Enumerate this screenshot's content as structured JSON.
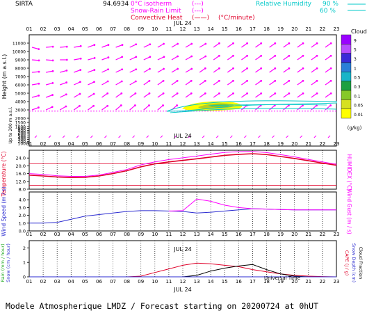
{
  "header": {
    "site": "SIRTA",
    "coord": "94.6934",
    "legend_left": [
      {
        "label": "0°C isotherm",
        "sample": "(---)",
        "color": "#ff00ff"
      },
      {
        "label": "Snow-Rain Limit",
        "sample": "(---)",
        "color": "#ff00ff"
      },
      {
        "label": "Convective Heat",
        "sample": "(——)",
        "color": "#e0002a",
        "unit": "(°C/minute)"
      }
    ],
    "legend_right": {
      "label": "Relative Humidity",
      "v1": "90 %",
      "v2": "60 %",
      "color": "#00c8c8"
    }
  },
  "hours": [
    "01",
    "02",
    "03",
    "04",
    "05",
    "06",
    "07",
    "08",
    "09",
    "10",
    "11",
    "12",
    "13",
    "14",
    "15",
    "16",
    "17",
    "18",
    "19",
    "20",
    "21",
    "22",
    "23"
  ],
  "date_label": "JUL 24",
  "footer": {
    "universal_time": "Universal Time",
    "title": "Modele Atmospherique LMDZ / Forecast starting on 20200724 at 0hUT"
  },
  "colors": {
    "magenta": "#ff00ff",
    "red": "#e0002a",
    "blue": "#2a2ad0",
    "cyan": "#00c8c8",
    "black": "#000000",
    "grey_dot": "#000000"
  },
  "chart_data": [
    {
      "type": "heatmap",
      "ylabel": "Height (m a.s.l.)",
      "ylabel_extra": "Up to 200 m a.s.l.",
      "yticks": [
        100,
        200,
        300,
        400,
        500,
        600,
        700,
        800,
        900,
        1000,
        1500,
        2000,
        3000,
        4000,
        5000,
        6000,
        7000,
        8000,
        9000,
        10000,
        11000
      ],
      "ytick_labels": [
        "100",
        "200",
        "300",
        "400",
        "500",
        "600",
        "700",
        "800",
        "900",
        "1000",
        "1500",
        "2000",
        "3000",
        "4000",
        "5000",
        "6000",
        "7000",
        "8000",
        "9000",
        "10000",
        "11000"
      ],
      "freezing_level_m": 2850,
      "wind_rows_m": [
        10500,
        9000,
        7500,
        6000,
        4500,
        3000
      ],
      "wind_dirs_deg": [
        [
          15,
          -5,
          -5,
          -10,
          -20,
          -20,
          -20,
          -25,
          -25,
          -30,
          -30,
          -30,
          -30,
          -35,
          -35,
          -35,
          -35,
          -35,
          -35,
          -35,
          -35,
          -35
        ],
        [
          5,
          5,
          0,
          -10,
          -15,
          -20,
          -25,
          -25,
          -25,
          -25,
          -30,
          -30,
          -30,
          -35,
          -35,
          -35,
          -35,
          -35,
          -35,
          -35,
          -35,
          -35
        ],
        [
          -5,
          -10,
          -15,
          -20,
          -20,
          -25,
          -25,
          -25,
          -30,
          -30,
          -30,
          -30,
          -35,
          -35,
          -35,
          -35,
          -35,
          -35,
          -35,
          -35,
          -35,
          -35
        ],
        [
          -10,
          -15,
          -20,
          -25,
          -25,
          -30,
          -30,
          -30,
          -35,
          -35,
          -35,
          -35,
          -35,
          -35,
          -35,
          -35,
          -35,
          -35,
          -35,
          -35,
          -35,
          -35
        ],
        [
          -15,
          -20,
          -25,
          -30,
          -30,
          -35,
          -35,
          -35,
          -35,
          -35,
          -35,
          -35,
          -35,
          -35,
          -35,
          -35,
          -35,
          -35,
          -35,
          -35,
          -35,
          -35
        ],
        [
          -20,
          -25,
          -30,
          -35,
          -35,
          -35,
          -40,
          -40,
          -40,
          -40,
          -40,
          -40,
          -40,
          -40,
          -40,
          -40,
          -40,
          -40,
          -40,
          -40,
          -40,
          -40
        ]
      ],
      "cloud_colorbar": {
        "title": "Clouds",
        "unit": "(g/kg)",
        "labels": [
          "9",
          "5",
          "3",
          "1",
          "0.5",
          "0.3",
          "0.1",
          "0.05",
          "0.01"
        ],
        "colors": [
          "#9a00ff",
          "#b64cff",
          "#3a2ad8",
          "#2a7fd8",
          "#18b4c8",
          "#1ca040",
          "#86c828",
          "#d6e020",
          "#ffff00"
        ]
      },
      "rh_band": {
        "color": "#00c8c8",
        "hours_from": 13,
        "hours_to": 23,
        "top_m": 2750,
        "bottom_m": 1800
      }
    },
    {
      "type": "line",
      "ylabel_left": "Temperature (°C)",
      "ylabel_right": "HUMIDEX (°C)",
      "ylim": [
        8.0,
        28.0
      ],
      "yticks": [
        8.0,
        12.0,
        16.0,
        20.0,
        24.0
      ],
      "ytick_labels": [
        "8.0",
        "12.0",
        "16.0",
        "20.0",
        "24.0"
      ],
      "ref_lines": [
        {
          "value": 10.0,
          "color": "#e0002a"
        },
        {
          "value": 21.0,
          "color": "#e0002a"
        }
      ],
      "series": [
        {
          "kind": "temperature",
          "color": "#e0002a",
          "values": [
            15.2,
            14.8,
            14.3,
            14.0,
            14.1,
            14.8,
            16.0,
            17.5,
            19.5,
            21.0,
            22.0,
            22.8,
            23.6,
            24.5,
            25.4,
            25.9,
            26.2,
            25.8,
            24.8,
            23.8,
            22.6,
            21.4,
            20.3
          ]
        },
        {
          "kind": "humidex",
          "color": "#ff00ff",
          "values": [
            16.0,
            15.6,
            14.9,
            14.6,
            14.6,
            15.3,
            16.6,
            18.1,
            20.5,
            22.0,
            23.2,
            24.1,
            25.0,
            26.0,
            26.9,
            27.3,
            27.4,
            26.8,
            25.8,
            24.6,
            23.3,
            22.0,
            20.8
          ]
        }
      ]
    },
    {
      "type": "line",
      "ylabel_left": "Wind Speed (m / s)",
      "ylabel_right": "Wind Gust (m / s)",
      "ylim": [
        0.0,
        5.0
      ],
      "yticks": [
        0.0,
        1.0,
        2.0,
        3.0,
        4.0
      ],
      "ytick_labels": [
        "0.0",
        "1.0",
        "2.0",
        "3.0",
        "4.0"
      ],
      "series": [
        {
          "kind": "speed",
          "color": "#2a2ad0",
          "values": [
            1.0,
            1.0,
            1.1,
            1.5,
            1.9,
            2.1,
            2.3,
            2.5,
            2.6,
            2.6,
            2.55,
            2.5,
            2.3,
            2.4,
            2.55,
            2.7,
            2.85,
            2.8,
            2.75,
            2.7,
            2.7,
            2.7,
            2.7
          ]
        },
        {
          "kind": "gust",
          "color": "#ff00ff",
          "values": [
            null,
            null,
            null,
            null,
            null,
            null,
            null,
            null,
            null,
            null,
            2.55,
            2.6,
            4.1,
            3.8,
            3.3,
            3.0,
            2.85,
            2.8,
            2.75,
            2.7,
            2.7,
            2.7,
            2.7
          ]
        }
      ]
    },
    {
      "type": "line",
      "ylabel_left": [
        "Rain (mm / hour)",
        "Snow (cm / hour)"
      ],
      "ylabel_right": [
        "CAPE (J / g)",
        "Snow Depth (cm)",
        "Cloud Fraction"
      ],
      "ylim": [
        0,
        2.5
      ],
      "yticks": [
        0,
        1,
        2
      ],
      "ytick_labels": [
        "0",
        "1",
        "2"
      ],
      "series": [
        {
          "kind": "cape",
          "color": "#e0002a",
          "values": [
            0,
            0,
            0,
            0,
            0,
            0,
            0,
            0,
            0.05,
            0.3,
            0.55,
            0.8,
            0.95,
            0.9,
            0.8,
            0.7,
            0.5,
            0.35,
            0.2,
            0.1,
            0.05,
            0.02,
            0
          ]
        },
        {
          "kind": "cloud_fraction",
          "color": "#000000",
          "values": [
            0,
            0,
            0,
            0,
            0,
            0,
            0,
            0,
            0,
            0,
            0,
            0,
            0.1,
            0.4,
            0.6,
            0.75,
            0.85,
            0.5,
            0.2,
            0.05,
            0,
            0,
            0
          ]
        },
        {
          "kind": "rain",
          "color": "#2a2ad0",
          "values": [
            0,
            0,
            0,
            0,
            0,
            0,
            0,
            0,
            0,
            0,
            0,
            0,
            0,
            0,
            0,
            0,
            0,
            0,
            0,
            0,
            0,
            0,
            0
          ]
        }
      ]
    }
  ]
}
